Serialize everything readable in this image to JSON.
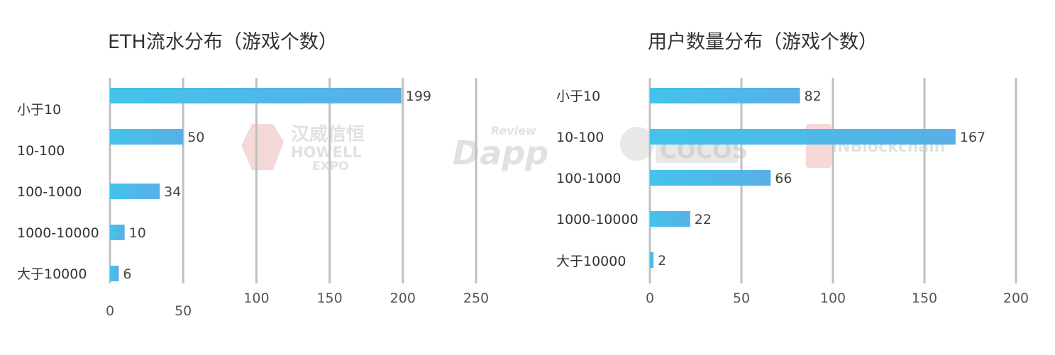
{
  "chart_data": [
    {
      "type": "bar",
      "orientation": "horizontal",
      "title": "ETH流水分布（游戏个数）",
      "categories": [
        "小于10",
        "10-100",
        "100-1000",
        "1000-10000",
        "大于10000"
      ],
      "values": [
        199,
        50,
        34,
        10,
        6
      ],
      "xlim": [
        0,
        250
      ],
      "xticks": [
        "0",
        "50",
        "100",
        "150",
        "200",
        "250"
      ],
      "grid": true,
      "legend": "none",
      "bar_color": "#47BEE9"
    },
    {
      "type": "bar",
      "orientation": "horizontal",
      "title": "用户数量分布（游戏个数）",
      "categories": [
        "小于10",
        "10-100",
        "100-1000",
        "1000-10000",
        "大于10000"
      ],
      "values": [
        82,
        167,
        66,
        22,
        2
      ],
      "xlim": [
        0,
        200
      ],
      "xticks": [
        "0",
        "50",
        "100",
        "150",
        "200"
      ],
      "grid": true,
      "legend": "none",
      "bar_color": "#47BEE9"
    }
  ],
  "watermarks": {
    "howell_cn": "汉威信恒",
    "howell_en1": "HOWELL",
    "howell_en2": "EXPO",
    "dapp_small": "Review",
    "dapp_big": "Dapp",
    "cocos": "COCOS",
    "inblockchain": "INBlockchain"
  }
}
